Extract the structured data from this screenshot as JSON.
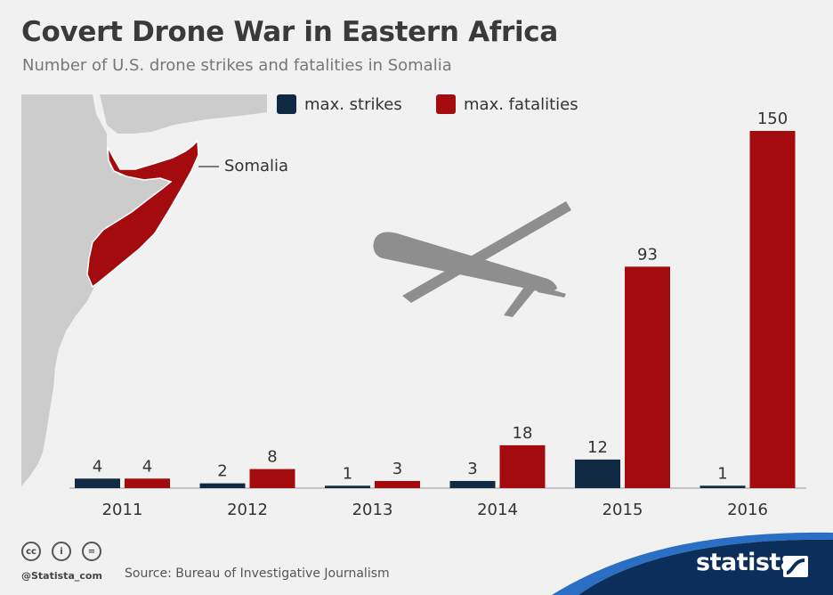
{
  "chart_data": {
    "type": "bar",
    "title": "Covert Drone War in Eastern Africa",
    "subtitle": "Number of U.S. drone strikes and fatalities in Somalia",
    "categories": [
      "2011",
      "2012",
      "2013",
      "2014",
      "2015",
      "2016"
    ],
    "series": [
      {
        "name": "max. strikes",
        "values": [
          4,
          2,
          1,
          3,
          12,
          1
        ],
        "color": "#0f2a42"
      },
      {
        "name": "max. fatalities",
        "values": [
          4,
          8,
          3,
          18,
          93,
          150
        ],
        "color": "#a30b0e"
      }
    ],
    "ylim": [
      0,
      150
    ],
    "grid": false,
    "legend_position": "top"
  },
  "map": {
    "region_label": "Somalia",
    "land_color": "#cccccc",
    "highlight_color": "#a30b0e"
  },
  "footer": {
    "handle": "@Statista_com",
    "source": "Source: Bureau of Investigative Journalism",
    "brand": "statista",
    "license_icons": [
      "cc-icon",
      "by-icon",
      "nd-icon"
    ],
    "license_glyphs": [
      "cc",
      "i",
      "="
    ]
  },
  "colors": {
    "background": "#f1f1f1",
    "footer_wave": "#0c2e5a",
    "footer_wave_accent": "#2a6fc4",
    "drone": "#8e8e8e"
  }
}
